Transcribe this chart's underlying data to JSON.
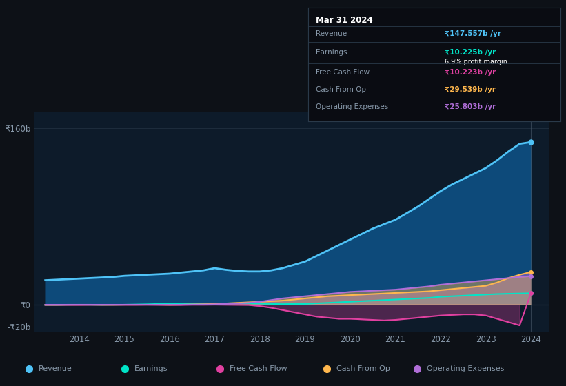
{
  "background_color": "#0d1117",
  "plot_bg_color": "#0d1b2a",
  "grid_color": "#1e2d3d",
  "text_color": "#8899aa",
  "title_color": "#ffffff",
  "years": [
    2013.25,
    2013.5,
    2013.75,
    2014.0,
    2014.25,
    2014.5,
    2014.75,
    2015.0,
    2015.25,
    2015.5,
    2015.75,
    2016.0,
    2016.25,
    2016.5,
    2016.75,
    2017.0,
    2017.25,
    2017.5,
    2017.75,
    2018.0,
    2018.25,
    2018.5,
    2018.75,
    2019.0,
    2019.25,
    2019.5,
    2019.75,
    2020.0,
    2020.25,
    2020.5,
    2020.75,
    2021.0,
    2021.25,
    2021.5,
    2021.75,
    2022.0,
    2022.25,
    2022.5,
    2022.75,
    2023.0,
    2023.25,
    2023.5,
    2023.75,
    2024.0
  ],
  "revenue": [
    22,
    22.5,
    23,
    23.5,
    24,
    24.5,
    25,
    26,
    26.5,
    27,
    27.5,
    28,
    29,
    30,
    31,
    33,
    31.5,
    30.5,
    30,
    30,
    31,
    33,
    36,
    39,
    44,
    49,
    54,
    59,
    64,
    69,
    73,
    77,
    83,
    89,
    96,
    103,
    109,
    114,
    119,
    124,
    131,
    139,
    146,
    147.557
  ],
  "earnings": [
    -0.5,
    -0.5,
    -0.3,
    -0.2,
    -0.3,
    -0.4,
    -0.3,
    -0.2,
    0.0,
    0.2,
    0.5,
    0.8,
    1.0,
    0.8,
    0.5,
    0.3,
    0.5,
    0.8,
    1.0,
    0.8,
    0.5,
    0.3,
    0.5,
    0.5,
    1.0,
    1.5,
    2.0,
    2.5,
    3.0,
    3.5,
    4.0,
    4.5,
    5.0,
    5.5,
    6.0,
    7.0,
    7.5,
    8.0,
    8.5,
    9.0,
    9.5,
    9.8,
    10.0,
    10.225
  ],
  "free_cash_flow": [
    -0.5,
    -0.5,
    -0.5,
    -0.5,
    -0.4,
    -0.4,
    -0.4,
    -0.4,
    -0.4,
    -0.3,
    -0.4,
    -0.5,
    -0.5,
    -0.3,
    -0.3,
    -0.2,
    -0.3,
    -0.4,
    -0.5,
    -1.5,
    -3,
    -5,
    -7,
    -9,
    -11,
    -12,
    -13,
    -13,
    -13.5,
    -14,
    -14.5,
    -14,
    -13,
    -12,
    -11,
    -10,
    -9.5,
    -9,
    -9,
    -10,
    -13,
    -16,
    -19,
    10.223
  ],
  "cash_from_op": [
    -0.3,
    -0.3,
    -0.2,
    -0.2,
    -0.2,
    -0.3,
    -0.3,
    -0.2,
    -0.2,
    -0.2,
    -0.2,
    -0.3,
    -0.2,
    0.0,
    0.2,
    0.5,
    1.0,
    1.5,
    2.0,
    2.5,
    3.0,
    3.5,
    4.5,
    5.5,
    6.5,
    7.5,
    8.0,
    8.5,
    9.0,
    9.5,
    10.0,
    10.5,
    11.0,
    11.5,
    12.0,
    13.0,
    14.0,
    15.0,
    16.0,
    17.0,
    20.0,
    24.0,
    27.0,
    29.539
  ],
  "operating_expenses": [
    -0.2,
    -0.2,
    -0.2,
    -0.2,
    -0.2,
    -0.2,
    -0.2,
    -0.2,
    -0.2,
    -0.2,
    -0.2,
    -0.2,
    -0.2,
    -0.1,
    0.0,
    0.2,
    0.5,
    1.0,
    1.5,
    2.5,
    4.0,
    5.5,
    6.5,
    7.5,
    8.5,
    9.5,
    10.5,
    11.5,
    12.0,
    12.5,
    13.0,
    13.5,
    14.5,
    15.5,
    16.5,
    18.0,
    19.0,
    20.0,
    21.0,
    22.0,
    23.0,
    24.0,
    25.0,
    25.803
  ],
  "revenue_color": "#4fc3f7",
  "earnings_color": "#00e5c8",
  "free_cash_flow_color": "#e040a0",
  "cash_from_op_color": "#ffb74d",
  "operating_expenses_color": "#b06ed8",
  "revenue_fill_color": "#0d4a7a",
  "ylim": [
    -25,
    175
  ],
  "yticks": [
    -20,
    0,
    160
  ],
  "ytick_labels": [
    "-₹20b",
    "₹0",
    "₹160b"
  ],
  "xtick_labels": [
    "2014",
    "2015",
    "2016",
    "2017",
    "2018",
    "2019",
    "2020",
    "2021",
    "2022",
    "2023",
    "2024"
  ],
  "xtick_positions": [
    2014,
    2015,
    2016,
    2017,
    2018,
    2019,
    2020,
    2021,
    2022,
    2023,
    2024
  ],
  "tooltip_title": "Mar 31 2024",
  "tooltip_revenue_label": "Revenue",
  "tooltip_revenue_val": "₹147.557b /yr",
  "tooltip_earnings_label": "Earnings",
  "tooltip_earnings_val": "₹10.225b /yr",
  "tooltip_profit_margin": "6.9% profit margin",
  "tooltip_fcf_label": "Free Cash Flow",
  "tooltip_fcf_val": "₹10.223b /yr",
  "tooltip_cashop_label": "Cash From Op",
  "tooltip_cashop_val": "₹29.539b /yr",
  "tooltip_opex_label": "Operating Expenses",
  "tooltip_opex_val": "₹25.803b /yr",
  "legend_labels": [
    "Revenue",
    "Earnings",
    "Free Cash Flow",
    "Cash From Op",
    "Operating Expenses"
  ],
  "legend_colors": [
    "#4fc3f7",
    "#00e5c8",
    "#e040a0",
    "#ffb74d",
    "#b06ed8"
  ]
}
